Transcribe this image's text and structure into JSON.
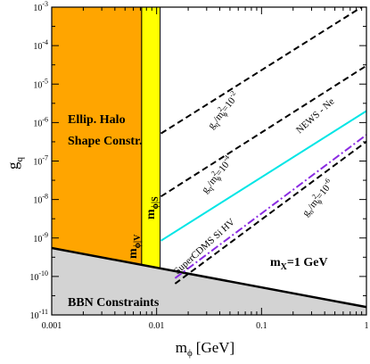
{
  "chart_data": {
    "type": "line",
    "xlabel": "m",
    "xlabel_sub": "ϕ",
    "xlabel_unit": "[GeV]",
    "ylabel": "g",
    "ylabel_sub": "q",
    "x_scale": "log",
    "y_scale": "log",
    "xlim": [
      0.001,
      1
    ],
    "ylim": [
      1e-11,
      0.001
    ],
    "x_ticks": [
      {
        "value": 0.001,
        "label": "0.001"
      },
      {
        "value": 0.01,
        "label": "0.01"
      },
      {
        "value": 0.1,
        "label": "0.1"
      },
      {
        "value": 1,
        "label": "1"
      }
    ],
    "y_ticks": [
      {
        "value": 0.001,
        "base": "10",
        "exp": "-3"
      },
      {
        "value": 0.0001,
        "base": "10",
        "exp": "-4"
      },
      {
        "value": 1e-05,
        "base": "10",
        "exp": "-5"
      },
      {
        "value": 1e-06,
        "base": "10",
        "exp": "-6"
      },
      {
        "value": 1e-07,
        "base": "10",
        "exp": "-7"
      },
      {
        "value": 1e-08,
        "base": "10",
        "exp": "-8"
      },
      {
        "value": 1e-09,
        "base": "10",
        "exp": "-9"
      },
      {
        "value": 1e-10,
        "base": "10",
        "exp": "-10"
      },
      {
        "value": 1e-11,
        "base": "10",
        "exp": "-11"
      }
    ],
    "regions": [
      {
        "key": "ellip_halo",
        "x_range": [
          0.001,
          0.0072
        ],
        "color": "#ffa500",
        "label_lines": [
          "Ellip. Halo",
          "Shape Constr."
        ]
      },
      {
        "key": "m_phi_s",
        "x_range": [
          0.0072,
          0.0108
        ],
        "color": "#ffff00",
        "label_main": "m",
        "label_sub": "ϕ|S"
      },
      {
        "key": "bbn",
        "boundary": {
          "x": [
            0.001,
            1
          ],
          "y": [
            5.5e-10,
            1.6e-11
          ]
        },
        "color": "#d3d3d3",
        "label": "BBN Constraints"
      }
    ],
    "series": [
      {
        "key": "ratio_1e-2",
        "style": "dashed",
        "color": "#000000",
        "x": [
          0.011,
          1
        ],
        "y": [
          5.2e-07,
          0.0012
        ]
      },
      {
        "key": "ratio_1e-4",
        "style": "dashed",
        "color": "#000000",
        "x": [
          0.011,
          1
        ],
        "y": [
          1.2e-08,
          3e-05
        ]
      },
      {
        "key": "news_ne",
        "name": "NEWS - Ne",
        "style": "solid",
        "color": "#00e5e5",
        "x": [
          0.011,
          1
        ],
        "y": [
          8.5e-10,
          2e-06
        ]
      },
      {
        "key": "supercdms",
        "name": "SuperCDMS Si HV",
        "style": "dashdot",
        "color": "#8a2be2",
        "x": [
          0.015,
          1
        ],
        "y": [
          9e-11,
          4.8e-07
        ]
      },
      {
        "key": "ratio_1e-6",
        "style": "dashed",
        "color": "#000000",
        "x": [
          0.015,
          1
        ],
        "y": [
          6.5e-11,
          3.2e-07
        ]
      }
    ],
    "annotations": {
      "ratio_1e-2": {
        "g": "g",
        "g_sub": "q",
        "slash": "/m",
        "m_sup": "2",
        "m_sub": "ϕ",
        "eq": "=10",
        "exp": "-2"
      },
      "ratio_1e-4": {
        "g": "g",
        "g_sub": "q",
        "slash": "/m",
        "m_sup": "2",
        "m_sub": "ϕ",
        "eq": "=10",
        "exp": "-4"
      },
      "ratio_1e-6": {
        "g": "g",
        "g_sub": "n",
        "slash": "/m",
        "m_sup": "2",
        "m_sub": "ϕ",
        "eq": "=10",
        "exp": "-6"
      },
      "news": "NEWS - Ne",
      "supercdms": "SuperCDMS Si HV",
      "m_phi_v": {
        "main": "m",
        "sub": "ϕ|V"
      },
      "mx": {
        "main": "m",
        "sub": "X",
        "rest": "=1 GeV"
      }
    }
  }
}
